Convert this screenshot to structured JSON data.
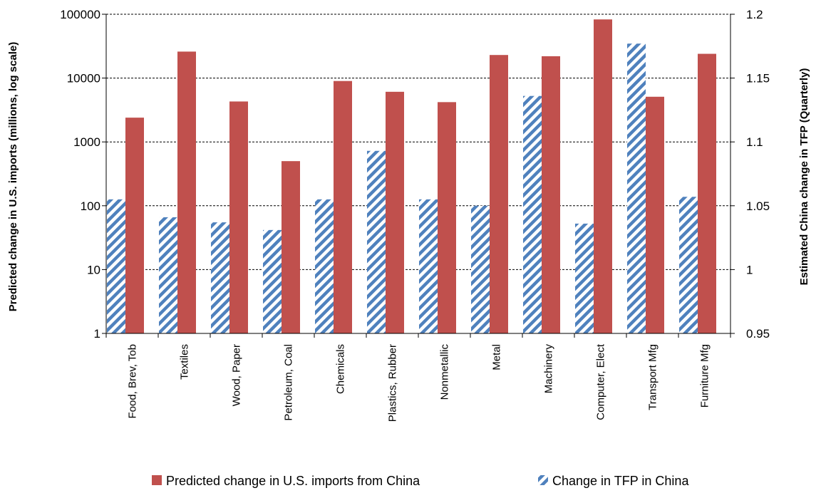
{
  "chart_data": {
    "type": "bar",
    "categories": [
      "Food, Brev, Tob",
      "Textiles",
      "Wood, Paper",
      "Petroleum, Coal",
      "Chemicals",
      "Plastics, Rubber",
      "Nonmetallic",
      "Metal",
      "Machinery",
      "Computer, Elect",
      "Transport Mfg",
      "Furniture Mfg"
    ],
    "series": [
      {
        "name": "Change in TFP in China",
        "axis": "right",
        "pattern": "diagonal-stripes",
        "color": "#4f81bd",
        "values": [
          1.055,
          1.041,
          1.037,
          1.031,
          1.055,
          1.093,
          1.055,
          1.05,
          1.136,
          1.036,
          1.177,
          1.057
        ]
      },
      {
        "name": "Predicted change in U.S. imports from China",
        "axis": "left",
        "color": "#c0504d",
        "values": [
          2400,
          26000,
          4300,
          500,
          9000,
          6100,
          4200,
          23000,
          22000,
          83000,
          5100,
          24000
        ]
      }
    ],
    "left_axis": {
      "label": "Predicted change in U.S. imports (millions, log scale)",
      "scale": "log",
      "ylim": [
        1,
        100000
      ],
      "ticks": [
        "1",
        "10",
        "100",
        "1000",
        "10000",
        "100000"
      ]
    },
    "right_axis": {
      "label": "Estimated China change in TFP (Quarterly)",
      "scale": "linear",
      "ylim": [
        0.95,
        1.2
      ],
      "ticks": [
        "0.95",
        "1",
        "1.05",
        "1.1",
        "1.15",
        "1.2"
      ]
    },
    "grid": "horizontal-dashed",
    "legend_position": "bottom"
  }
}
